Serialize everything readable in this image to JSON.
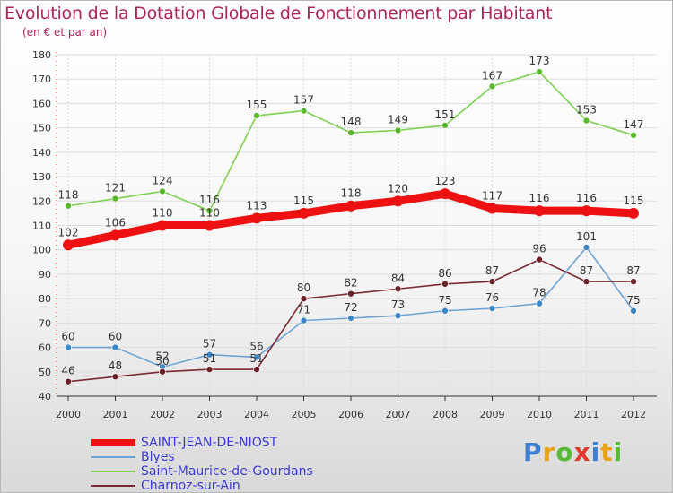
{
  "chart_data": {
    "type": "line",
    "title": "Evolution de la Dotation Globale de Fonctionnement par Habitant",
    "subtitle": "(en € et par an)",
    "xlabel": "",
    "ylabel": "",
    "x": [
      "2000",
      "2001",
      "2002",
      "2003",
      "2004",
      "2005",
      "2006",
      "2007",
      "2008",
      "2009",
      "2010",
      "2011",
      "2012"
    ],
    "ylim": [
      40,
      180
    ],
    "yticks": [
      40,
      50,
      60,
      70,
      80,
      90,
      100,
      110,
      120,
      130,
      140,
      150,
      160,
      170,
      180
    ],
    "grid": true,
    "legend_position": "bottom-left",
    "series": [
      {
        "name": "Saint-Maurice-de-Gourdans",
        "color": "#7dd14f",
        "marker": "#5ab82e",
        "values": [
          118,
          121,
          124,
          116,
          155,
          157,
          148,
          149,
          151,
          167,
          173,
          153,
          147
        ]
      },
      {
        "name": "Blyes",
        "color": "#6fa3d3",
        "marker": "#3a86c6",
        "values": [
          60,
          60,
          52,
          57,
          56,
          71,
          72,
          73,
          75,
          76,
          78,
          101,
          75
        ]
      },
      {
        "name": "Charnoz-sur-Ain",
        "color": "#7a2a32",
        "marker": "#6b1f27",
        "values": [
          46,
          48,
          50,
          51,
          51,
          80,
          82,
          84,
          86,
          87,
          96,
          87,
          87
        ]
      },
      {
        "name": "SAINT-JEAN-DE-NIOST",
        "color": "#ee1111",
        "marker": "#ee1111",
        "values": [
          102,
          106,
          110,
          110,
          113,
          115,
          118,
          120,
          123,
          117,
          116,
          116,
          115
        ],
        "emphasis": true
      }
    ],
    "label_overrides": {
      "Blyes": [
        "60",
        "60",
        "52",
        "57",
        "56",
        "71",
        "72",
        "73",
        "75",
        "76",
        "78",
        "101",
        "75"
      ],
      "Charnoz-sur-Ain": [
        "46",
        "48",
        "50",
        "51",
        "51",
        "80",
        "82",
        "84",
        "86",
        "87",
        "96",
        "87",
        "87"
      ]
    }
  },
  "legend": [
    {
      "label": "SAINT-JEAN-DE-NIOST",
      "color": "#ee1111",
      "thick": true
    },
    {
      "label": "Blyes",
      "color": "#6fa3d3",
      "thick": false
    },
    {
      "label": "Saint-Maurice-de-Gourdans",
      "color": "#7dd14f",
      "thick": false
    },
    {
      "label": "Charnoz-sur-Ain",
      "color": "#7a2a32",
      "thick": false
    }
  ],
  "brand": {
    "letters": [
      "P",
      "r",
      "o",
      "x",
      "i",
      "t",
      "i"
    ],
    "colors": [
      "#3c7ed0",
      "#e8a317",
      "#58b936",
      "#e23b2e",
      "#3c7ed0",
      "#e8a317",
      "#58b936"
    ]
  }
}
